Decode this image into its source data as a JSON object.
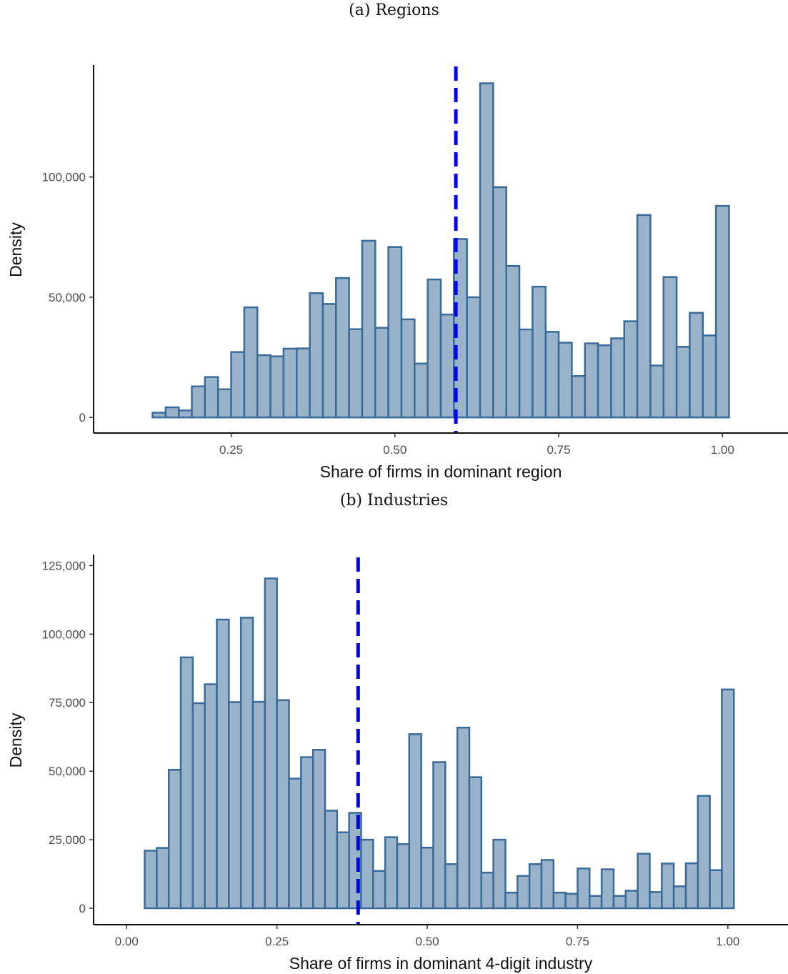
{
  "chart_data": [
    {
      "type": "bar",
      "subtitle": "(a) Regions",
      "xlabel": "Share of firms in dominant region",
      "ylabel": "Density",
      "xlim": [
        0.04,
        1.1
      ],
      "ylim": [
        -6500,
        146000
      ],
      "xticks": [
        0.25,
        0.5,
        0.75,
        1.0
      ],
      "xtick_labels": [
        "0.25",
        "0.50",
        "0.75",
        "1.00"
      ],
      "yticks": [
        0,
        50000,
        100000
      ],
      "ytick_labels": [
        "0",
        "50,000",
        "100,000"
      ],
      "bin_start": 0.13,
      "bin_width": 0.02,
      "values": [
        2000,
        4200,
        2900,
        12900,
        16800,
        11700,
        27200,
        45800,
        25900,
        25400,
        28600,
        28700,
        51700,
        47200,
        58000,
        36700,
        73500,
        37300,
        70900,
        40800,
        22400,
        57400,
        42800,
        74200,
        50000,
        139000,
        95800,
        63000,
        36600,
        54400,
        35600,
        31100,
        17200,
        30800,
        30000,
        32900,
        40000,
        84200,
        21600,
        58400,
        29400,
        43500,
        34100,
        88000
      ],
      "reference_line_x": 0.593,
      "colors": {
        "fill": "#98b3ca",
        "outline": "#3a6b98",
        "reference_line": "#0000ee"
      },
      "grid": false
    },
    {
      "type": "bar",
      "subtitle": "(b) Industries",
      "xlabel": "Share of firms in dominant 4-digit industry",
      "ylabel": "Density",
      "xlim": [
        -0.055,
        1.1
      ],
      "ylim": [
        -6000,
        128500
      ],
      "xticks": [
        0.0,
        0.25,
        0.5,
        0.75,
        1.0
      ],
      "xtick_labels": [
        "0.00",
        "0.25",
        "0.50",
        "0.75",
        "1.00"
      ],
      "yticks": [
        0,
        25000,
        50000,
        75000,
        100000,
        125000
      ],
      "ytick_labels": [
        "0",
        "25,000",
        "50,000",
        "75,000",
        "100,000",
        "125,000"
      ],
      "bin_start": 0.03,
      "bin_width": 0.02,
      "values": [
        21000,
        22000,
        50500,
        91500,
        74800,
        81700,
        105300,
        75200,
        106000,
        75300,
        120300,
        75900,
        47300,
        55100,
        57800,
        35600,
        27700,
        34800,
        25000,
        13600,
        25900,
        23400,
        63500,
        22100,
        53300,
        16100,
        65900,
        47800,
        13000,
        25000,
        5700,
        11800,
        16100,
        17600,
        5700,
        5300,
        14500,
        4500,
        14200,
        4500,
        6400,
        19900,
        5900,
        16300,
        8000,
        16400,
        41000,
        13900,
        79800
      ],
      "reference_line_x": 0.385,
      "colors": {
        "fill": "#98b3ca",
        "outline": "#3a6b98",
        "reference_line": "#0000ee"
      },
      "grid": false
    }
  ]
}
